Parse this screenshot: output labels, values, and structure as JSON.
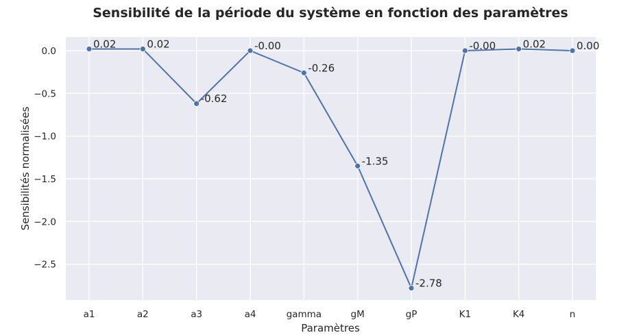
{
  "chart_data": {
    "type": "line",
    "title": "Sensibilité de la période du système en fonction des paramètres",
    "xlabel": "Paramètres",
    "ylabel": "Sensibilités normalisées",
    "categories": [
      "a1",
      "a2",
      "a3",
      "a4",
      "gamma",
      "gM",
      "gP",
      "K1",
      "K4",
      "n"
    ],
    "values": [
      0.02,
      0.02,
      -0.62,
      -0.0,
      -0.26,
      -1.35,
      -2.78,
      -0.0,
      0.02,
      0.0
    ],
    "data_labels": [
      "0.02",
      "0.02",
      "-0.62",
      "-0.00",
      "-0.26",
      "-1.35",
      "-2.78",
      "-0.00",
      "0.02",
      "0.00"
    ],
    "yticks": [
      0.0,
      -0.5,
      -1.0,
      -1.5,
      -2.0,
      -2.5
    ],
    "ytick_labels": [
      "0.0",
      "−0.5",
      "−1.0",
      "−1.5",
      "−2.0",
      "−2.5"
    ],
    "ylim": [
      -2.92,
      0.16
    ],
    "grid": true,
    "line_color": "#4c72b0",
    "background_color": "#eaeaf2",
    "grid_color": "#ffffff"
  }
}
